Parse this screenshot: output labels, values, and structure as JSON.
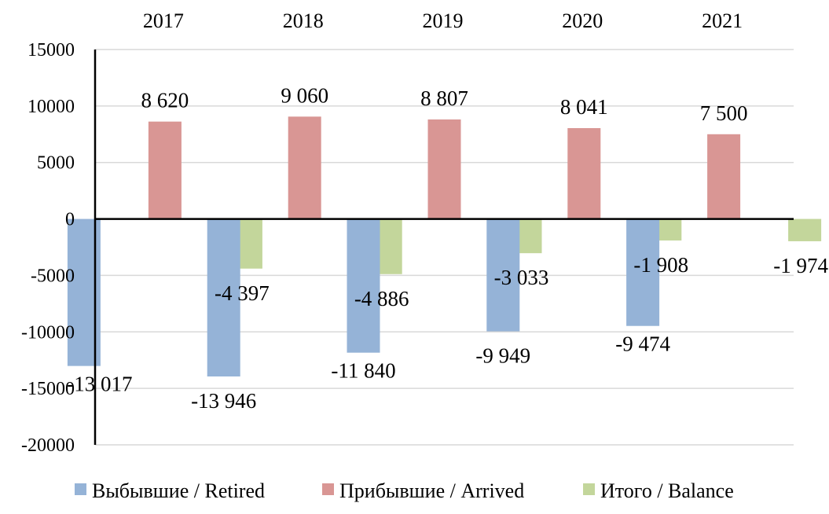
{
  "chart_data": {
    "type": "bar",
    "categories": [
      "2017",
      "2018",
      "2019",
      "2020",
      "2021"
    ],
    "series": [
      {
        "name": "Выбывшие / Retired",
        "color": "#95B3D7",
        "values": [
          -13017,
          -13946,
          -11840,
          -9949,
          -9474
        ],
        "labels": [
          "-13 017",
          "-13 946",
          "-11 840",
          "-9 949",
          "-9 474"
        ]
      },
      {
        "name": "Прибывшие / Arrived",
        "color": "#D99694",
        "values": [
          8620,
          9060,
          8807,
          8041,
          7500
        ],
        "labels": [
          "8 620",
          "9 060",
          "8 807",
          "8 041",
          "7 500"
        ]
      },
      {
        "name": "Итого / Balance",
        "color": "#C3D69B",
        "values": [
          -4397,
          -4886,
          -3033,
          -1908,
          -1974
        ],
        "labels": [
          "-4 397",
          "-4 886",
          "-3 033",
          "-1 908",
          "-1 974"
        ]
      }
    ],
    "ylim": [
      -20000,
      15000
    ],
    "yticks": [
      15000,
      10000,
      5000,
      0,
      -5000,
      -10000,
      -15000,
      -20000
    ],
    "ytick_labels": [
      "15000",
      "10000",
      "5000",
      "0",
      "-5000",
      "-10000",
      "-15000",
      "-20000"
    ],
    "grid": true,
    "category_axis": "top",
    "legend_position": "bottom",
    "title": "",
    "xlabel": "",
    "ylabel": ""
  }
}
